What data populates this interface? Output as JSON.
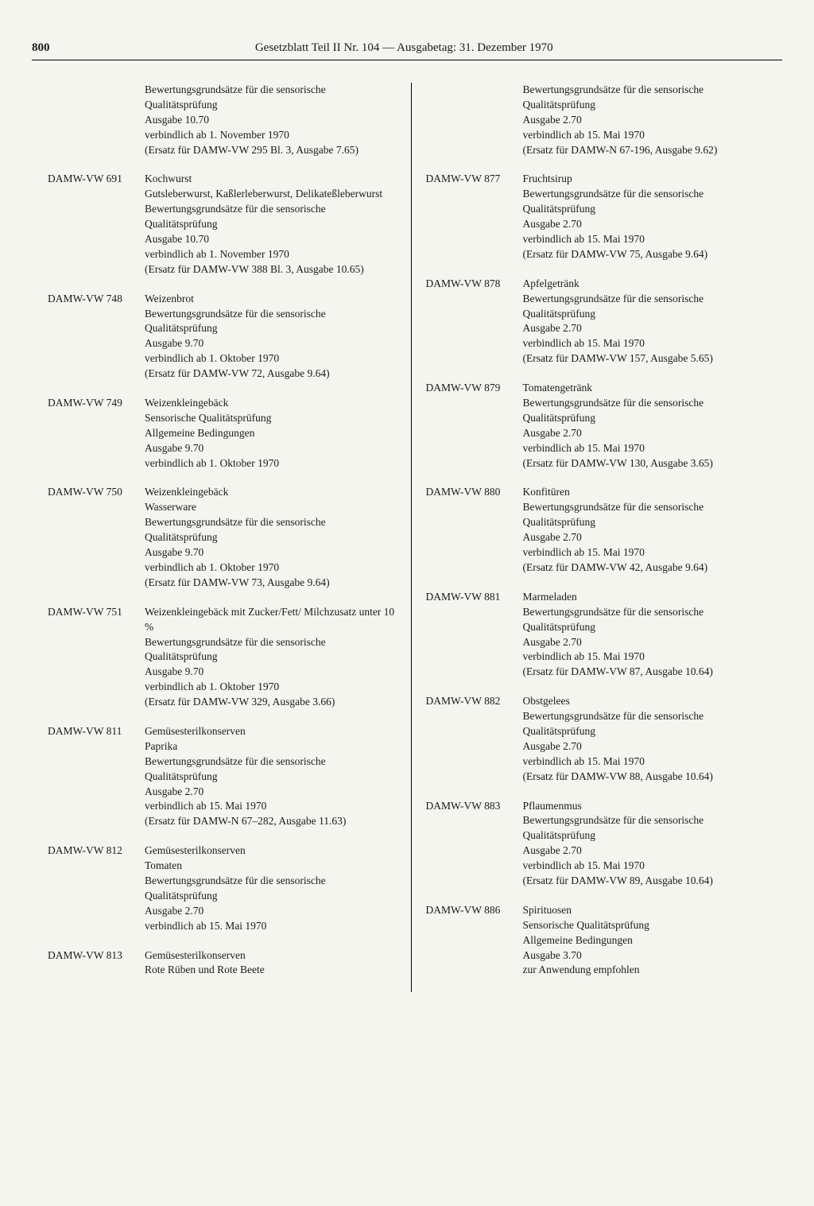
{
  "page_number": "800",
  "header_title": "Gesetzblatt Teil II Nr. 104 — Ausgabetag: 31. Dezember 1970",
  "left_column": [
    {
      "code": "",
      "lines": [
        "Bewertungsgrundsätze für die sensorische Qualitätsprüfung",
        "Ausgabe 10.70",
        "verbindlich ab 1. November 1970",
        "(Ersatz für DAMW-VW 295 Bl. 3, Ausgabe 7.65)"
      ]
    },
    {
      "code": "DAMW-VW 691",
      "lines": [
        "Kochwurst",
        "Gutsleberwurst, Kaßlerleberwurst, Delikateßleberwurst",
        "Bewertungsgrundsätze für die sensorische Qualitätsprüfung",
        "Ausgabe 10.70",
        "verbindlich ab 1. November 1970",
        "(Ersatz für DAMW-VW 388 Bl. 3, Ausgabe 10.65)"
      ]
    },
    {
      "code": "DAMW-VW 748",
      "lines": [
        "Weizenbrot",
        "Bewertungsgrundsätze für die sensorische Qualitätsprüfung",
        "Ausgabe 9.70",
        "verbindlich ab 1. Oktober 1970",
        "(Ersatz für DAMW-VW 72, Ausgabe 9.64)"
      ]
    },
    {
      "code": "DAMW-VW 749",
      "lines": [
        "Weizenkleingebäck",
        "Sensorische Qualitätsprüfung",
        "Allgemeine Bedingungen",
        "Ausgabe 9.70",
        "verbindlich ab 1. Oktober 1970"
      ]
    },
    {
      "code": "DAMW-VW 750",
      "lines": [
        "Weizenkleingebäck",
        "Wasserware",
        "Bewertungsgrundsätze für die sensorische Qualitätsprüfung",
        "Ausgabe 9.70",
        "verbindlich ab 1. Oktober 1970",
        "(Ersatz für DAMW-VW 73, Ausgabe 9.64)"
      ]
    },
    {
      "code": "DAMW-VW 751",
      "lines": [
        "Weizenkleingebäck mit Zucker/Fett/ Milchzusatz unter 10 %",
        "Bewertungsgrundsätze für die sensorische Qualitätsprüfung",
        "Ausgabe 9.70",
        "verbindlich ab 1. Oktober 1970",
        "(Ersatz für DAMW-VW 329, Ausgabe 3.66)"
      ]
    },
    {
      "code": "DAMW-VW 811",
      "lines": [
        "Gemüsesterilkonserven",
        "Paprika",
        "Bewertungsgrundsätze für die sensorische Qualitätsprüfung",
        "Ausgabe 2.70",
        "verbindlich ab 15. Mai 1970",
        "(Ersatz für DAMW-N 67–282, Ausgabe 11.63)"
      ]
    },
    {
      "code": "DAMW-VW 812",
      "lines": [
        "Gemüsesterilkonserven",
        "Tomaten",
        "Bewertungsgrundsätze für die sensorische Qualitätsprüfung",
        "Ausgabe 2.70",
        "verbindlich ab 15. Mai 1970"
      ]
    },
    {
      "code": "DAMW-VW 813",
      "lines": [
        "Gemüsesterilkonserven",
        "Rote Rüben und Rote Beete"
      ]
    }
  ],
  "right_column": [
    {
      "code": "",
      "lines": [
        "Bewertungsgrundsätze für die sensorische Qualitätsprüfung",
        "Ausgabe 2.70",
        "verbindlich ab 15. Mai 1970",
        "(Ersatz für DAMW-N 67-196, Ausgabe 9.62)"
      ]
    },
    {
      "code": "DAMW-VW 877",
      "lines": [
        "Fruchtsirup",
        "Bewertungsgrundsätze für die sensorische Qualitätsprüfung",
        "Ausgabe 2.70",
        "verbindlich ab 15. Mai 1970",
        "(Ersatz für DAMW-VW 75, Ausgabe 9.64)"
      ]
    },
    {
      "code": "DAMW-VW 878",
      "lines": [
        "Apfelgetränk",
        "Bewertungsgrundsätze für die sensorische Qualitätsprüfung",
        "Ausgabe 2.70",
        "verbindlich ab 15. Mai 1970",
        "(Ersatz für DAMW-VW 157, Ausgabe 5.65)"
      ]
    },
    {
      "code": "DAMW-VW 879",
      "lines": [
        "Tomatengetränk",
        "Bewertungsgrundsätze für die sensorische Qualitätsprüfung",
        "Ausgabe 2.70",
        "verbindlich ab 15. Mai 1970",
        "(Ersatz für DAMW-VW 130, Ausgabe 3.65)"
      ]
    },
    {
      "code": "DAMW-VW 880",
      "lines": [
        "Konfitüren",
        "Bewertungsgrundsätze für die sensorische Qualitätsprüfung",
        "Ausgabe 2.70",
        "verbindlich ab 15. Mai 1970",
        "(Ersatz für DAMW-VW 42, Ausgabe 9.64)"
      ]
    },
    {
      "code": "DAMW-VW 881",
      "lines": [
        "Marmeladen",
        "Bewertungsgrundsätze für die sensorische Qualitätsprüfung",
        "Ausgabe 2.70",
        "verbindlich ab 15. Mai 1970",
        "(Ersatz für DAMW-VW 87, Ausgabe 10.64)"
      ]
    },
    {
      "code": "DAMW-VW 882",
      "lines": [
        "Obstgelees",
        "Bewertungsgrundsätze für die sensorische Qualitätsprüfung",
        "Ausgabe 2.70",
        "verbindlich ab 15. Mai 1970",
        "(Ersatz für DAMW-VW 88, Ausgabe 10.64)"
      ]
    },
    {
      "code": "DAMW-VW 883",
      "lines": [
        "Pflaumenmus",
        "Bewertungsgrundsätze für die sensorische Qualitätsprüfung",
        "Ausgabe 2.70",
        "verbindlich ab 15. Mai 1970",
        "(Ersatz für DAMW-VW 89, Ausgabe 10.64)"
      ]
    },
    {
      "code": "DAMW-VW 886",
      "lines": [
        "Spirituosen",
        "Sensorische Qualitätsprüfung",
        "Allgemeine Bedingungen",
        "Ausgabe 3.70",
        "zur Anwendung empfohlen"
      ]
    }
  ]
}
